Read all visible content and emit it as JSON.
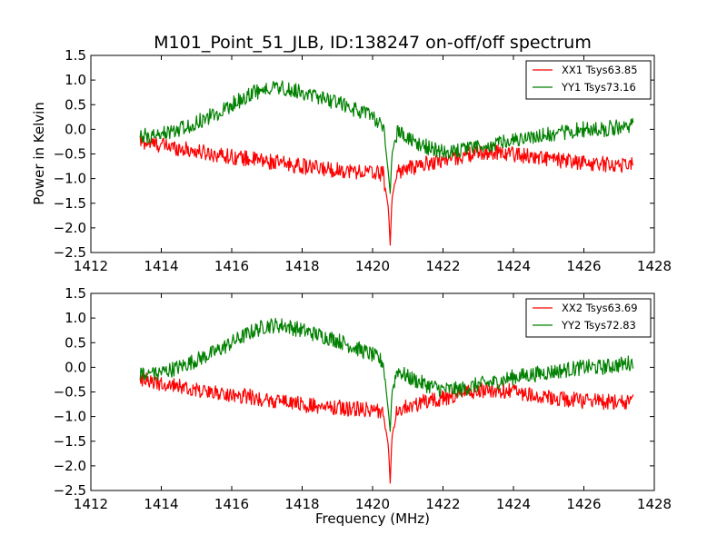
{
  "figure": {
    "title": "M101_Point_51_JLB, ID:138247 on-off/off spectrum",
    "ylabel": "Power in Kelvin",
    "xlabel": "Frequency (MHz)"
  },
  "colors": {
    "red": "#ff0000",
    "green": "#008000"
  },
  "chart_data": [
    {
      "type": "line",
      "title": "M101_Point_51_JLB, ID:138247 on-off/off spectrum",
      "xlabel": "",
      "ylabel": "Power in Kelvin",
      "xlim": [
        1412,
        1428
      ],
      "ylim": [
        -2.5,
        1.5
      ],
      "xticks": [
        "1412",
        "1414",
        "1416",
        "1418",
        "1420",
        "1422",
        "1424",
        "1426",
        "1428"
      ],
      "yticks": [
        "1.5",
        "1.0",
        "0.5",
        "0.0",
        "−0.5",
        "−1.0",
        "−1.5",
        "−2.0",
        "−2.5"
      ],
      "legend_position": "top-right",
      "grid": false,
      "series": [
        {
          "name": "XX1 Tsys63.85",
          "color": "#ff0000",
          "x": [
            1413.4,
            1414.0,
            1414.5,
            1415.0,
            1415.5,
            1416.0,
            1416.5,
            1417.0,
            1417.5,
            1418.0,
            1418.5,
            1419.0,
            1419.5,
            1420.0,
            1420.3,
            1420.45,
            1420.5,
            1420.55,
            1420.7,
            1421.0,
            1421.5,
            1422.0,
            1422.5,
            1423.0,
            1423.5,
            1424.0,
            1424.5,
            1425.0,
            1425.5,
            1426.0,
            1426.5,
            1427.0,
            1427.4
          ],
          "y": [
            -0.25,
            -0.32,
            -0.38,
            -0.45,
            -0.5,
            -0.55,
            -0.6,
            -0.65,
            -0.7,
            -0.75,
            -0.8,
            -0.82,
            -0.85,
            -0.88,
            -0.9,
            -1.6,
            -2.35,
            -1.4,
            -0.85,
            -0.8,
            -0.7,
            -0.62,
            -0.55,
            -0.48,
            -0.45,
            -0.5,
            -0.55,
            -0.6,
            -0.65,
            -0.68,
            -0.7,
            -0.72,
            -0.7
          ]
        },
        {
          "name": "YY1 Tsys73.16",
          "color": "#008000",
          "x": [
            1413.4,
            1414.0,
            1414.5,
            1415.0,
            1415.5,
            1416.0,
            1416.5,
            1417.0,
            1417.5,
            1418.0,
            1418.5,
            1419.0,
            1419.5,
            1420.0,
            1420.3,
            1420.45,
            1420.5,
            1420.55,
            1420.7,
            1421.0,
            1421.5,
            1422.0,
            1422.5,
            1423.0,
            1423.5,
            1424.0,
            1424.5,
            1425.0,
            1425.5,
            1426.0,
            1426.5,
            1427.0,
            1427.4
          ],
          "y": [
            -0.15,
            -0.1,
            0.0,
            0.15,
            0.3,
            0.5,
            0.7,
            0.85,
            0.85,
            0.75,
            0.65,
            0.55,
            0.4,
            0.25,
            0.1,
            -0.9,
            -1.3,
            -0.5,
            -0.05,
            -0.2,
            -0.35,
            -0.45,
            -0.45,
            -0.35,
            -0.3,
            -0.2,
            -0.15,
            -0.1,
            -0.05,
            0.0,
            0.0,
            0.05,
            0.1
          ]
        }
      ]
    },
    {
      "type": "line",
      "title": "",
      "xlabel": "Frequency (MHz)",
      "ylabel": "",
      "xlim": [
        1412,
        1428
      ],
      "ylim": [
        -2.5,
        1.5
      ],
      "xticks": [
        "1412",
        "1414",
        "1416",
        "1418",
        "1420",
        "1422",
        "1424",
        "1426",
        "1428"
      ],
      "yticks": [
        "1.5",
        "1.0",
        "0.5",
        "0.0",
        "−0.5",
        "−1.0",
        "−1.5",
        "−2.0",
        "−2.5"
      ],
      "legend_position": "top-right",
      "grid": false,
      "series": [
        {
          "name": "XX2 Tsys63.69",
          "color": "#ff0000",
          "x": [
            1413.4,
            1414.0,
            1414.5,
            1415.0,
            1415.5,
            1416.0,
            1416.5,
            1417.0,
            1417.5,
            1418.0,
            1418.5,
            1419.0,
            1419.5,
            1420.0,
            1420.3,
            1420.45,
            1420.5,
            1420.55,
            1420.7,
            1421.0,
            1421.5,
            1422.0,
            1422.5,
            1423.0,
            1423.5,
            1424.0,
            1424.5,
            1425.0,
            1425.5,
            1426.0,
            1426.5,
            1427.0,
            1427.4
          ],
          "y": [
            -0.25,
            -0.32,
            -0.38,
            -0.45,
            -0.5,
            -0.55,
            -0.6,
            -0.65,
            -0.7,
            -0.75,
            -0.8,
            -0.82,
            -0.85,
            -0.88,
            -0.9,
            -1.6,
            -2.35,
            -1.4,
            -0.85,
            -0.8,
            -0.7,
            -0.62,
            -0.55,
            -0.48,
            -0.45,
            -0.5,
            -0.55,
            -0.6,
            -0.65,
            -0.68,
            -0.7,
            -0.72,
            -0.7
          ]
        },
        {
          "name": "YY2 Tsys72.83",
          "color": "#008000",
          "x": [
            1413.4,
            1414.0,
            1414.5,
            1415.0,
            1415.5,
            1416.0,
            1416.5,
            1417.0,
            1417.5,
            1418.0,
            1418.5,
            1419.0,
            1419.5,
            1420.0,
            1420.3,
            1420.45,
            1420.5,
            1420.55,
            1420.7,
            1421.0,
            1421.5,
            1422.0,
            1422.5,
            1423.0,
            1423.5,
            1424.0,
            1424.5,
            1425.0,
            1425.5,
            1426.0,
            1426.5,
            1427.0,
            1427.4
          ],
          "y": [
            -0.15,
            -0.1,
            0.0,
            0.15,
            0.3,
            0.5,
            0.7,
            0.85,
            0.85,
            0.75,
            0.65,
            0.55,
            0.4,
            0.25,
            0.1,
            -0.9,
            -1.3,
            -0.5,
            -0.05,
            -0.2,
            -0.35,
            -0.45,
            -0.45,
            -0.35,
            -0.3,
            -0.2,
            -0.15,
            -0.1,
            -0.05,
            0.0,
            0.0,
            0.05,
            0.1
          ]
        }
      ]
    }
  ]
}
